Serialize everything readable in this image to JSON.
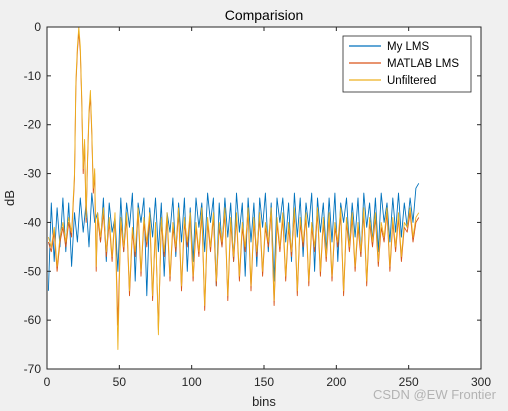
{
  "chart_data": {
    "type": "line",
    "title": "Comparision",
    "xlabel": "bins",
    "ylabel": "dB",
    "xlim": [
      0,
      300
    ],
    "ylim": [
      -70,
      0
    ],
    "xticks": [
      0,
      50,
      100,
      150,
      200,
      250,
      300
    ],
    "yticks": [
      0,
      -10,
      -20,
      -30,
      -40,
      -50,
      -60,
      -70
    ],
    "grid": false,
    "legend_position": "top-right",
    "series": [
      {
        "name": "My LMS",
        "color": "#0072BD",
        "x": [
          1,
          3,
          5,
          7,
          9,
          11,
          13,
          15,
          17,
          19,
          21,
          23,
          25,
          27,
          29,
          31,
          33,
          35,
          37,
          39,
          41,
          43,
          45,
          47,
          49,
          51,
          53,
          55,
          57,
          59,
          61,
          63,
          65,
          67,
          69,
          71,
          73,
          75,
          77,
          79,
          81,
          83,
          85,
          87,
          89,
          91,
          93,
          95,
          97,
          99,
          101,
          103,
          105,
          107,
          109,
          111,
          113,
          115,
          117,
          119,
          121,
          123,
          125,
          127,
          129,
          131,
          133,
          135,
          137,
          139,
          141,
          143,
          145,
          147,
          149,
          151,
          153,
          155,
          157,
          159,
          161,
          163,
          165,
          167,
          169,
          171,
          173,
          175,
          177,
          179,
          181,
          183,
          185,
          187,
          189,
          191,
          193,
          195,
          197,
          199,
          201,
          203,
          205,
          207,
          209,
          211,
          213,
          215,
          217,
          219,
          221,
          223,
          225,
          227,
          229,
          231,
          233,
          235,
          237,
          239,
          241,
          243,
          245,
          247,
          249,
          251,
          253,
          255,
          257
        ],
        "y": [
          -54,
          -36,
          -48,
          -37,
          -45,
          -35,
          -46,
          -36,
          -49,
          -38,
          -44,
          -35,
          -42,
          -36,
          -45,
          -34,
          -40,
          -38,
          -44,
          -35,
          -48,
          -36,
          -42,
          -39,
          -50,
          -35,
          -46,
          -36,
          -41,
          -34,
          -52,
          -36,
          -40,
          -35,
          -55,
          -37,
          -43,
          -35,
          -46,
          -36,
          -51,
          -38,
          -42,
          -35,
          -47,
          -36,
          -44,
          -35,
          -50,
          -37,
          -48,
          -35,
          -41,
          -36,
          -46,
          -34,
          -40,
          -35,
          -53,
          -36,
          -45,
          -35,
          -43,
          -36,
          -48,
          -34,
          -42,
          -36,
          -51,
          -35,
          -44,
          -36,
          -49,
          -35,
          -41,
          -34,
          -46,
          -36,
          -52,
          -35,
          -40,
          -35,
          -44,
          -36,
          -48,
          -34,
          -43,
          -35,
          -47,
          -36,
          -41,
          -34,
          -50,
          -35,
          -42,
          -36,
          -46,
          -35,
          -44,
          -34,
          -48,
          -36,
          -40,
          -35,
          -45,
          -36,
          -43,
          -35,
          -47,
          -34,
          -41,
          -36,
          -44,
          -35,
          -46,
          -34,
          -40,
          -36,
          -44,
          -35,
          -42,
          -34,
          -43,
          -36,
          -41,
          -35,
          -40,
          -33,
          -32
        ]
      },
      {
        "name": "MATLAB LMS",
        "color": "#D95319",
        "x": [
          1,
          3,
          5,
          7,
          9,
          11,
          13,
          15,
          17,
          19,
          20,
          21,
          22,
          23,
          24,
          25,
          26,
          27,
          28,
          29,
          30,
          31,
          32,
          33,
          34,
          35,
          37,
          39,
          41,
          43,
          45,
          47,
          49,
          51,
          53,
          55,
          57,
          59,
          61,
          63,
          65,
          67,
          69,
          71,
          73,
          75,
          77,
          79,
          81,
          83,
          85,
          87,
          89,
          91,
          93,
          95,
          97,
          99,
          101,
          103,
          105,
          107,
          109,
          111,
          113,
          115,
          117,
          119,
          121,
          123,
          125,
          127,
          129,
          131,
          133,
          135,
          137,
          139,
          141,
          143,
          145,
          147,
          149,
          151,
          153,
          155,
          157,
          159,
          161,
          163,
          165,
          167,
          169,
          171,
          173,
          175,
          177,
          179,
          181,
          183,
          185,
          187,
          189,
          191,
          193,
          195,
          197,
          199,
          201,
          203,
          205,
          207,
          209,
          211,
          213,
          215,
          217,
          219,
          221,
          223,
          225,
          227,
          229,
          231,
          233,
          235,
          237,
          239,
          241,
          243,
          245,
          247,
          249,
          251,
          253,
          255,
          257
        ],
        "y": [
          -44,
          -46,
          -42,
          -50,
          -44,
          -41,
          -45,
          -40,
          -43,
          -31,
          -12,
          -5,
          -1,
          -5,
          -15,
          -30,
          -24,
          -40,
          -28,
          -18,
          -14,
          -22,
          -34,
          -30,
          -50,
          -39,
          -44,
          -38,
          -47,
          -40,
          -48,
          -39,
          -61,
          -40,
          -46,
          -39,
          -55,
          -42,
          -47,
          -38,
          -51,
          -40,
          -45,
          -39,
          -56,
          -41,
          -62,
          -40,
          -47,
          -39,
          -52,
          -41,
          -46,
          -38,
          -54,
          -40,
          -45,
          -39,
          -52,
          -41,
          -47,
          -38,
          -58,
          -40,
          -46,
          -39,
          -53,
          -41,
          -45,
          -38,
          -56,
          -40,
          -48,
          -39,
          -52,
          -41,
          -46,
          -38,
          -54,
          -40,
          -47,
          -39,
          -51,
          -41,
          -45,
          -38,
          -57,
          -40,
          -46,
          -39,
          -52,
          -41,
          -47,
          -38,
          -55,
          -40,
          -45,
          -39,
          -53,
          -41,
          -46,
          -38,
          -51,
          -40,
          -48,
          -39,
          -52,
          -41,
          -45,
          -38,
          -55,
          -40,
          -46,
          -39,
          -50,
          -41,
          -47,
          -38,
          -53,
          -40,
          -45,
          -39,
          -49,
          -41,
          -44,
          -38,
          -50,
          -40,
          -46,
          -39,
          -48,
          -41,
          -42,
          -38,
          -44,
          -40,
          -39
        ]
      },
      {
        "name": "Unfiltered",
        "color": "#EDB120",
        "x": [
          1,
          3,
          5,
          7,
          9,
          11,
          13,
          15,
          17,
          19,
          20,
          21,
          22,
          23,
          24,
          25,
          26,
          27,
          28,
          29,
          30,
          31,
          32,
          33,
          34,
          35,
          37,
          39,
          41,
          43,
          45,
          47,
          49,
          51,
          53,
          55,
          57,
          59,
          61,
          63,
          65,
          67,
          69,
          71,
          73,
          75,
          77,
          79,
          81,
          83,
          85,
          87,
          89,
          91,
          93,
          95,
          97,
          99,
          101,
          103,
          105,
          107,
          109,
          111,
          113,
          115,
          117,
          119,
          121,
          123,
          125,
          127,
          129,
          131,
          133,
          135,
          137,
          139,
          141,
          143,
          145,
          147,
          149,
          151,
          153,
          155,
          157,
          159,
          161,
          163,
          165,
          167,
          169,
          171,
          173,
          175,
          177,
          179,
          181,
          183,
          185,
          187,
          189,
          191,
          193,
          195,
          197,
          199,
          201,
          203,
          205,
          207,
          209,
          211,
          213,
          215,
          217,
          219,
          221,
          223,
          225,
          227,
          229,
          231,
          233,
          235,
          237,
          239,
          241,
          243,
          245,
          247,
          249,
          251,
          253,
          255,
          257
        ],
        "y": [
          -43,
          -45,
          -41,
          -49,
          -43,
          -40,
          -44,
          -39,
          -42,
          -30,
          -11,
          -4,
          0,
          -4,
          -14,
          -29,
          -23,
          -39,
          -27,
          -17,
          -13,
          -21,
          -33,
          -29,
          -49,
          -38,
          -43,
          -37,
          -46,
          -39,
          -47,
          -38,
          -66,
          -39,
          -45,
          -38,
          -54,
          -41,
          -46,
          -37,
          -50,
          -39,
          -44,
          -38,
          -55,
          -40,
          -63,
          -39,
          -46,
          -38,
          -51,
          -40,
          -45,
          -37,
          -53,
          -39,
          -44,
          -38,
          -51,
          -40,
          -46,
          -37,
          -57,
          -39,
          -45,
          -38,
          -52,
          -40,
          -44,
          -37,
          -55,
          -39,
          -47,
          -38,
          -51,
          -40,
          -45,
          -37,
          -53,
          -39,
          -46,
          -38,
          -50,
          -40,
          -44,
          -37,
          -56,
          -39,
          -45,
          -38,
          -51,
          -40,
          -46,
          -37,
          -54,
          -39,
          -44,
          -38,
          -52,
          -40,
          -45,
          -37,
          -50,
          -39,
          -47,
          -38,
          -51,
          -40,
          -44,
          -37,
          -54,
          -39,
          -45,
          -38,
          -49,
          -40,
          -46,
          -37,
          -52,
          -39,
          -44,
          -38,
          -48,
          -40,
          -43,
          -37,
          -49,
          -39,
          -45,
          -38,
          -47,
          -40,
          -41,
          -37,
          -43,
          -39,
          -38
        ]
      }
    ]
  },
  "watermark": "CSDN @EW Frontier"
}
